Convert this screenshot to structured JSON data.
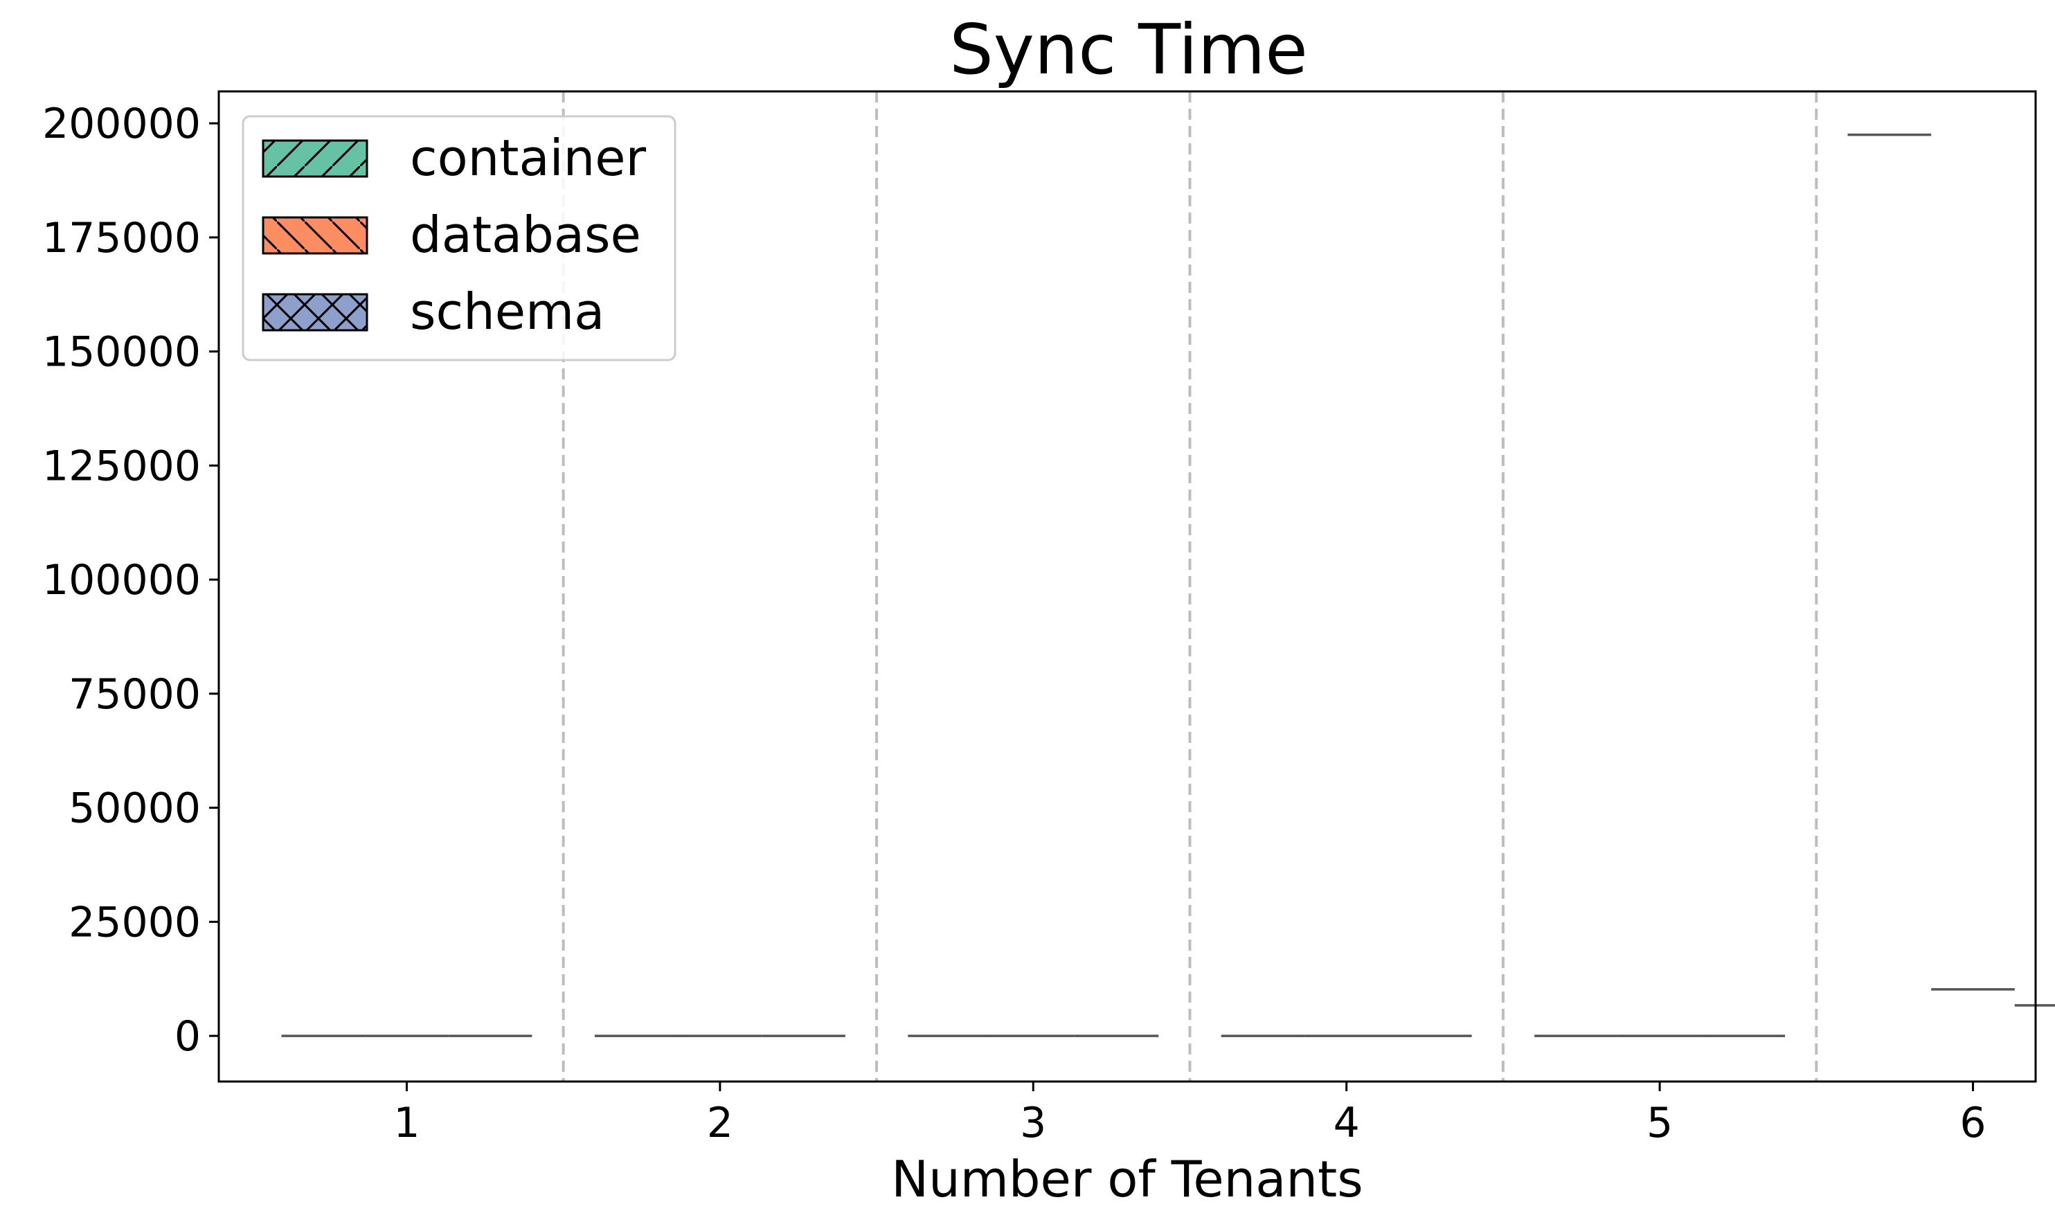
{
  "chart_data": {
    "type": "box",
    "title": "Sync Time",
    "xlabel": "Number of Tenants",
    "ylabel": "",
    "categories": [
      "1",
      "2",
      "3",
      "4",
      "5",
      "6"
    ],
    "ylim": [
      -10000,
      207000
    ],
    "yticks": [
      0,
      25000,
      50000,
      75000,
      100000,
      125000,
      150000,
      175000,
      200000
    ],
    "legend": {
      "placement": "top-left"
    },
    "series": [
      {
        "name": "container",
        "color": "#66c2a5",
        "hatch": "/",
        "values": [
          0,
          0,
          0,
          0,
          0,
          197500
        ]
      },
      {
        "name": "database",
        "color": "#fc8d62",
        "hatch": "\\",
        "values": [
          0,
          0,
          0,
          0,
          0,
          10200
        ]
      },
      {
        "name": "schema",
        "color": "#8da0cb",
        "hatch": "x",
        "values": [
          0,
          0,
          0,
          0,
          0,
          6700
        ]
      }
    ],
    "group_separators": "dashed"
  }
}
